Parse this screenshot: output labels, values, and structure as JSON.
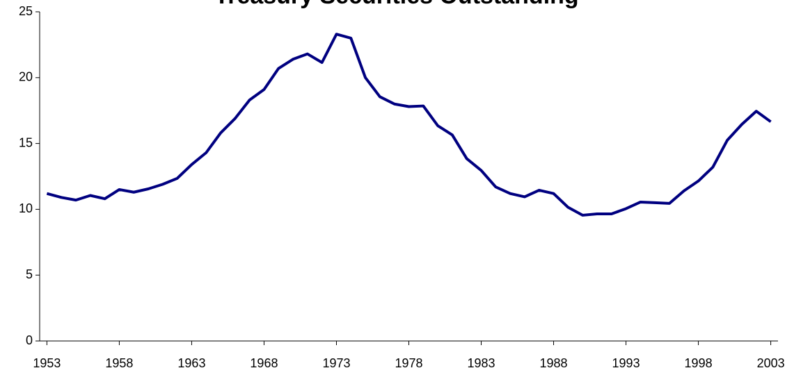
{
  "chart_data": {
    "type": "line",
    "title": "Treasury Securities Outstanding",
    "x": [
      1953,
      1954,
      1955,
      1956,
      1957,
      1958,
      1959,
      1960,
      1961,
      1962,
      1963,
      1964,
      1965,
      1966,
      1967,
      1968,
      1969,
      1970,
      1971,
      1972,
      1973,
      1974,
      1975,
      1976,
      1977,
      1978,
      1979,
      1980,
      1981,
      1982,
      1983,
      1984,
      1985,
      1986,
      1987,
      1988,
      1989,
      1990,
      1991,
      1992,
      1993,
      1994,
      1995,
      1996,
      1997,
      1998,
      1999,
      2000,
      2001,
      2002,
      2003
    ],
    "series": [
      {
        "name": "Treasury Securities Outstanding",
        "color": "#000080",
        "values": [
          11.2,
          10.9,
          10.7,
          11.05,
          10.8,
          11.5,
          11.3,
          11.55,
          11.9,
          12.35,
          13.4,
          14.3,
          15.8,
          16.9,
          18.3,
          19.1,
          20.7,
          21.4,
          21.8,
          21.15,
          23.3,
          23.0,
          20.0,
          18.55,
          18.0,
          17.8,
          17.85,
          16.35,
          15.65,
          13.85,
          12.95,
          11.7,
          11.2,
          10.95,
          11.45,
          11.2,
          10.15,
          9.55,
          9.65,
          9.65,
          10.05,
          10.55,
          10.5,
          10.45,
          11.4,
          12.15,
          13.2,
          15.25,
          16.45,
          17.45,
          16.65
        ]
      }
    ],
    "xlim": [
      1952.5,
      2003.5
    ],
    "xticks": [
      1953,
      1958,
      1963,
      1968,
      1973,
      1978,
      1983,
      1988,
      1993,
      1998,
      2003
    ],
    "ylim": [
      0,
      25
    ],
    "yticks": [
      0,
      5,
      10,
      15,
      20,
      25
    ],
    "legend": false
  }
}
